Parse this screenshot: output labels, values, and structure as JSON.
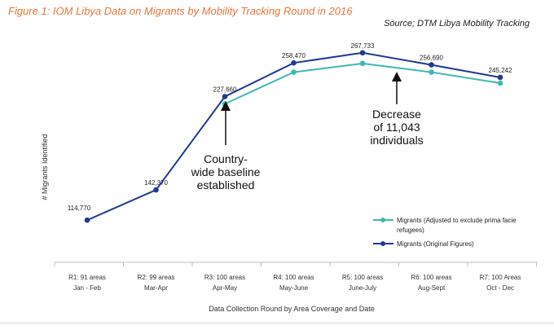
{
  "figure": {
    "title": "Figure 1: IOM Libya Data on Migrants by Mobility Tracking Round in 2016",
    "source": "Source; DTM Libya Mobility Tracking"
  },
  "chart_data": {
    "type": "line",
    "title": "Figure 1: IOM Libya Data on Migrants by Mobility Tracking Round in 2016",
    "xlabel": "Data Collection Round by Area Coverage and Date",
    "ylabel": "# Migrants Identified",
    "categories": [
      [
        "R1: 91 areas",
        "Jan - Feb"
      ],
      [
        "R2: 99 areas",
        "Mar-Apr"
      ],
      [
        "R3: 100 areas",
        "Apr-May"
      ],
      [
        "R4: 100 areas",
        "May-June"
      ],
      [
        "R5: 100 areas",
        "June-July"
      ],
      [
        "R6: 100 areas",
        "Aug-Sept"
      ],
      [
        "R7: 100 Areas",
        "Oct - Dec"
      ]
    ],
    "ylim": [
      100000,
      275000
    ],
    "grid": false,
    "legend_position": "bottom-right",
    "series": [
      {
        "name": "Migrants (Adjusted to exclude prima facie refugees)",
        "color": "#3fb8b0",
        "values": [
          null,
          null,
          221000,
          250000,
          258000,
          250000,
          240000
        ],
        "labels": [
          null,
          null,
          null,
          null,
          null,
          null,
          null
        ]
      },
      {
        "name": "Migrants (Original Figures)",
        "color": "#1f3a93",
        "values": [
          114770,
          142370,
          227660,
          258470,
          267733,
          256690,
          245242
        ],
        "labels": [
          "114,770",
          "142,370",
          "227,660",
          "258,470",
          "267,733",
          "256,690",
          "245,242"
        ]
      }
    ],
    "annotations": [
      {
        "lines": [
          "Country-",
          "wide baseline",
          "established"
        ],
        "category_index": 2
      },
      {
        "lines": [
          "Decrease",
          "of 11,043",
          "individuals"
        ],
        "category_index": 5
      }
    ]
  }
}
